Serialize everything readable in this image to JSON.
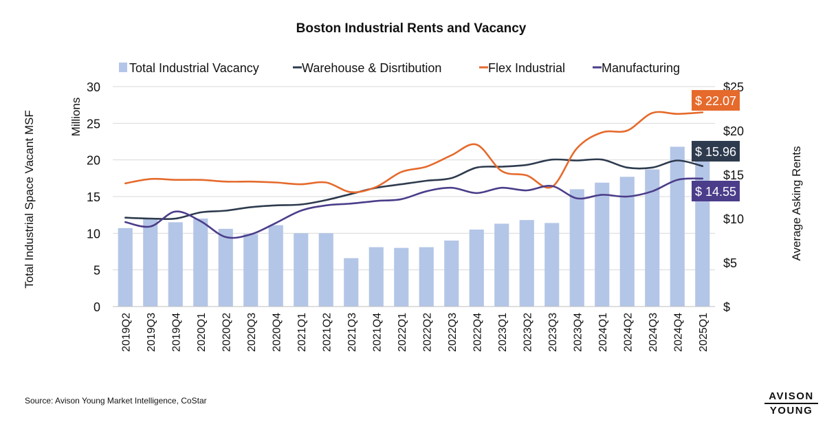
{
  "chart_data": {
    "type": "bar",
    "title": "Boston Industrial Rents and Vacancy",
    "left_axis_title": "Total Industrial Space Vacant MSF",
    "left_axis_unit": "Millions",
    "right_axis_title": "Average Asking Rents",
    "left_ylim": [
      0,
      30
    ],
    "left_ticks": [
      0,
      5,
      10,
      15,
      20,
      25,
      30
    ],
    "right_ylim": [
      0,
      25
    ],
    "right_tick_labels": [
      "$",
      "$5",
      "$10",
      "$15",
      "$20",
      "$25"
    ],
    "grid": true,
    "legend_position": "top",
    "categories": [
      "2019Q2",
      "2019Q3",
      "2019Q4",
      "2020Q1",
      "2020Q2",
      "2020Q3",
      "2020Q4",
      "2021Q1",
      "2021Q2",
      "2021Q3",
      "2021Q4",
      "2022Q1",
      "2022Q2",
      "2022Q3",
      "2022Q4",
      "2023Q1",
      "2023Q2",
      "2023Q3",
      "2023Q4",
      "2024Q1",
      "2024Q2",
      "2024Q3",
      "2024Q4",
      "2025Q1"
    ],
    "bar_series": {
      "name": "Total Industrial Vacancy",
      "color": "#b4c6e7",
      "axis": "left",
      "values": [
        10.7,
        12.0,
        11.5,
        12.0,
        10.6,
        9.9,
        11.1,
        10.0,
        10.0,
        6.6,
        8.1,
        8.0,
        8.1,
        9.0,
        10.5,
        11.3,
        11.8,
        11.4,
        16.0,
        16.9,
        17.7,
        18.7,
        21.8,
        22.5
      ]
    },
    "line_series": [
      {
        "name": "Warehouse & Disrtibution",
        "color": "#2e3b4e",
        "axis": "right",
        "values": [
          10.1,
          10.0,
          10.0,
          10.7,
          10.9,
          11.3,
          11.5,
          11.6,
          12.1,
          12.8,
          13.5,
          13.9,
          14.3,
          14.6,
          15.8,
          15.9,
          16.1,
          16.7,
          16.6,
          16.7,
          15.8,
          15.8,
          16.6,
          15.96
        ],
        "end_label": "$ 15.96"
      },
      {
        "name": "Flex Industrial",
        "color": "#e56a2c",
        "axis": "right",
        "values": [
          14.0,
          14.5,
          14.4,
          14.4,
          14.2,
          14.2,
          14.1,
          13.9,
          14.1,
          13.0,
          13.6,
          15.3,
          15.9,
          17.2,
          18.4,
          15.4,
          14.9,
          13.6,
          18.0,
          19.8,
          20.0,
          22.0,
          21.9,
          22.07
        ],
        "end_label": "$ 22.07"
      },
      {
        "name": "Manufacturing",
        "color": "#4b3d8a",
        "axis": "right",
        "values": [
          9.6,
          9.1,
          10.8,
          9.7,
          7.9,
          8.2,
          9.5,
          10.9,
          11.5,
          11.7,
          12.0,
          12.2,
          13.1,
          13.5,
          12.9,
          13.5,
          13.2,
          13.7,
          12.3,
          12.7,
          12.5,
          13.1,
          14.4,
          14.55
        ],
        "end_label": "$ 14.55"
      }
    ],
    "source": "Source: Avison Young Market Intelligence, CoStar"
  },
  "brand": {
    "line1": "AVISON",
    "line2": "YOUNG"
  }
}
